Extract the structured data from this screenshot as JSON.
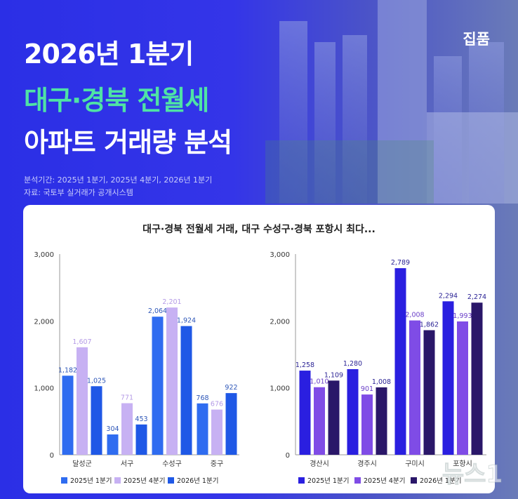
{
  "header": {
    "title_line1": "2026년 1분기",
    "title_line2": "대구·경북 전월세",
    "title_line3": "아파트 거래량 분석",
    "period": "분석기간: 2025년 1분기, 2025년 4분기, 2026년 1분기",
    "source": "자료: 국토부 실거래가 공개시스템",
    "brand": "집품"
  },
  "card": {
    "title": "대구·경북 전월세 거래, 대구 수성구·경북 포항시 최다..."
  },
  "colors": {
    "left": [
      "#2f6cf0",
      "#c7b1f3",
      "#1f58e6"
    ],
    "right": [
      "#2a1fe0",
      "#7f4ce6",
      "#2a1769"
    ]
  },
  "watermark": {
    "text": "뉴스1"
  },
  "chart_data": [
    {
      "type": "bar",
      "title": "",
      "categories": [
        "달성군",
        "서구",
        "수성구",
        "중구"
      ],
      "series": [
        {
          "name": "2025년 1분기",
          "values": [
            1182,
            304,
            2064,
            768
          ]
        },
        {
          "name": "2025년 4분기",
          "values": [
            1607,
            771,
            2201,
            676
          ]
        },
        {
          "name": "2026년 1분기",
          "values": [
            1025,
            453,
            1924,
            922
          ]
        }
      ],
      "value_labels": [
        [
          "1,182",
          "304",
          "2,064",
          "768"
        ],
        [
          "1,607",
          "771",
          "2,201",
          "676"
        ],
        [
          "1,025",
          "453",
          "1,924",
          "922"
        ]
      ],
      "ylim": [
        0,
        3000
      ],
      "yticks": [
        0,
        1000,
        2000,
        3000
      ],
      "ytick_labels": [
        "0",
        "1,000",
        "2,000",
        "3,000"
      ],
      "grid": false,
      "legend": "bottom"
    },
    {
      "type": "bar",
      "title": "",
      "categories": [
        "경산시",
        "경주시",
        "구미시",
        "포항시"
      ],
      "series": [
        {
          "name": "2025년 1분기",
          "values": [
            1258,
            1280,
            2789,
            2294
          ]
        },
        {
          "name": "2025년 4분기",
          "values": [
            1010,
            901,
            2008,
            1993
          ]
        },
        {
          "name": "2026년 1분기",
          "values": [
            1109,
            1008,
            1862,
            2274
          ]
        }
      ],
      "value_labels": [
        [
          "1,258",
          "1,280",
          "2,789",
          "2,294"
        ],
        [
          "1,010",
          "901",
          "2,008",
          "1,993"
        ],
        [
          "1,109",
          "1,008",
          "1,862",
          "2,274"
        ]
      ],
      "ylim": [
        0,
        3000
      ],
      "yticks": [
        0,
        1000,
        2000,
        3000
      ],
      "ytick_labels": [
        "0",
        "1,000",
        "2,000",
        "3,000"
      ],
      "grid": false,
      "legend": "bottom"
    }
  ]
}
